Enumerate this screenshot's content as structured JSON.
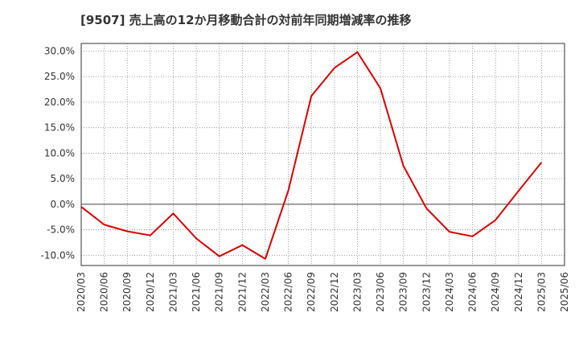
{
  "chart_data": {
    "type": "line",
    "title": "[9507]  売上高の12か月移動合計の対前年同期増減率の推移",
    "xlabel": "",
    "ylabel": "",
    "ylim": [
      -12,
      31.5
    ],
    "y_ticks": [
      30,
      25,
      20,
      15,
      10,
      5,
      0,
      -5,
      -10
    ],
    "y_tick_labels": [
      "30.0%",
      "25.0%",
      "20.0%",
      "15.0%",
      "10.0%",
      "5.0%",
      "0.0%",
      "-5.0%",
      "-10.0%"
    ],
    "categories": [
      "2020/03",
      "2020/06",
      "2020/09",
      "2020/12",
      "2021/03",
      "2021/06",
      "2021/09",
      "2021/12",
      "2022/03",
      "2022/06",
      "2022/09",
      "2022/12",
      "2023/03",
      "2023/06",
      "2023/09",
      "2023/12",
      "2024/03",
      "2024/06",
      "2024/09",
      "2024/12",
      "2025/03",
      "2025/06"
    ],
    "series": [
      {
        "name": "増減率",
        "color": "#dd0000",
        "values": [
          -0.5,
          -4.0,
          -5.3,
          -6.1,
          -1.8,
          -6.7,
          -10.2,
          -8.0,
          -10.7,
          2.7,
          21.2,
          26.7,
          29.8,
          22.7,
          7.5,
          -0.8,
          -5.4,
          -6.3,
          -3.1,
          2.6,
          8.2,
          null
        ]
      }
    ],
    "grid": true,
    "legend": "none"
  }
}
